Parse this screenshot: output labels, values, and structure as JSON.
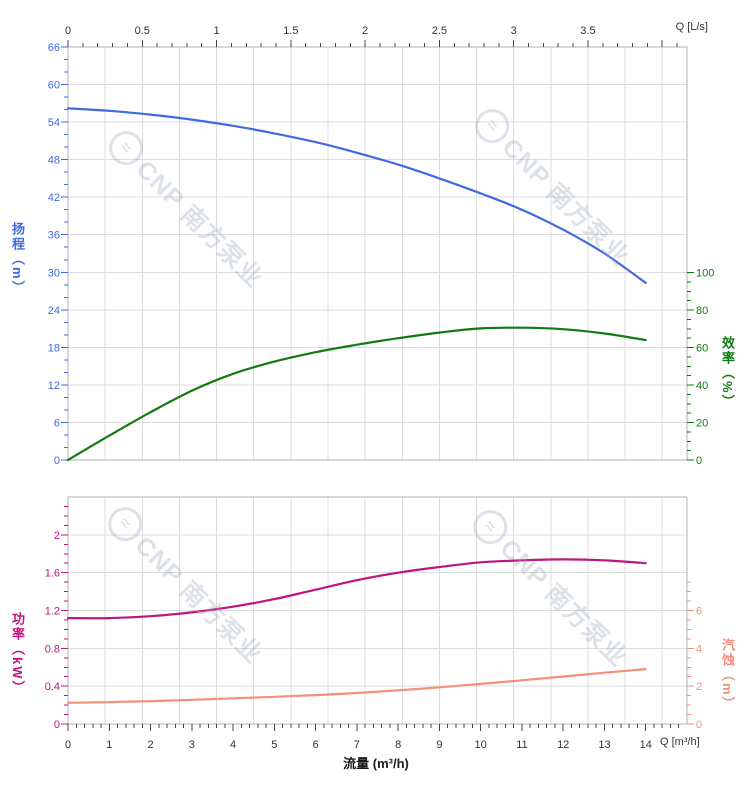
{
  "chart_data": {
    "type": "line",
    "description": "Pump performance curves: head, efficiency, power and NPSH versus flow",
    "x_flow_m3h": [
      0,
      1,
      2,
      3,
      4,
      5,
      6,
      7,
      8,
      9,
      10,
      11,
      12,
      13,
      14
    ],
    "series": [
      {
        "name": "head-curve",
        "axis": "head",
        "color": "#4169e1",
        "values": [
          56.2,
          55.8,
          55.2,
          54.4,
          53.4,
          52.2,
          50.8,
          49.1,
          47.2,
          45.0,
          42.6,
          40.0,
          36.8,
          33.0,
          28.3
        ]
      },
      {
        "name": "efficiency-curve",
        "axis": "efficiency",
        "color": "#117a11",
        "values": [
          0,
          13,
          25.5,
          37,
          46,
          52.5,
          57.5,
          61.5,
          65,
          68,
          70.2,
          70.6,
          69.8,
          67.5,
          64
        ]
      },
      {
        "name": "power-curve",
        "axis": "power",
        "color": "#c0157d",
        "values": [
          1.12,
          1.12,
          1.14,
          1.18,
          1.24,
          1.32,
          1.42,
          1.52,
          1.6,
          1.66,
          1.71,
          1.73,
          1.74,
          1.73,
          1.7
        ]
      },
      {
        "name": "npsh-curve",
        "axis": "npsh",
        "color": "#f4907c",
        "values": [
          1.12,
          1.16,
          1.21,
          1.28,
          1.36,
          1.44,
          1.53,
          1.64,
          1.78,
          1.94,
          2.12,
          2.31,
          2.51,
          2.71,
          2.9
        ]
      }
    ],
    "axes": {
      "top": {
        "label": "Q [L/s]",
        "tick_labels": [
          "0",
          "0.5",
          "1",
          "1.5",
          "2",
          "2.5",
          "3",
          "3.5"
        ],
        "range": [
          0,
          4.1667
        ],
        "major_step": 0.5,
        "minor_step": 0.1,
        "color": "#333333"
      },
      "bottom": {
        "label": "Q [m³/h]",
        "title": "流量 (m³/h)",
        "tick_labels": [
          "0",
          "1",
          "2",
          "3",
          "4",
          "5",
          "6",
          "7",
          "8",
          "9",
          "10",
          "11",
          "12",
          "13",
          "14"
        ],
        "range": [
          0,
          15
        ],
        "major_step": 1,
        "minor_step": 0.2,
        "color": "#333333"
      },
      "head": {
        "title": "扬程（m）",
        "tick_labels": [
          "0",
          "6",
          "12",
          "18",
          "24",
          "30",
          "36",
          "42",
          "48",
          "54",
          "60",
          "66"
        ],
        "range": [
          0,
          66
        ],
        "major_step": 6,
        "minor_step": 2,
        "color": "#4169e1"
      },
      "efficiency": {
        "title": "效率（%）",
        "tick_labels": [
          "0",
          "20",
          "40",
          "60",
          "80",
          "100"
        ],
        "range": [
          0,
          100
        ],
        "major_step": 20,
        "minor_step": 5,
        "color": "#117a11"
      },
      "power": {
        "title": "功率（kW）",
        "tick_labels": [
          "0",
          "0.4",
          "0.8",
          "1.2",
          "1.6",
          "2"
        ],
        "range": [
          0,
          2.4
        ],
        "major_step": 0.4,
        "minor_step": 0.1,
        "color": "#c0157d"
      },
      "npsh": {
        "title": "汽蚀（m）",
        "tick_labels": [
          "0",
          "2",
          "4",
          "6"
        ],
        "range": [
          0,
          12
        ],
        "major_step": 2,
        "minor_step": 0.5,
        "minor_max": 7.5,
        "color": "#f4907c"
      }
    },
    "grid": {
      "on": true,
      "line_color": "#dcdcdc",
      "border_color": "#b0b0b0"
    },
    "watermark": {
      "logo_glyph": "≈",
      "text": "CNP 南方泵业"
    }
  }
}
